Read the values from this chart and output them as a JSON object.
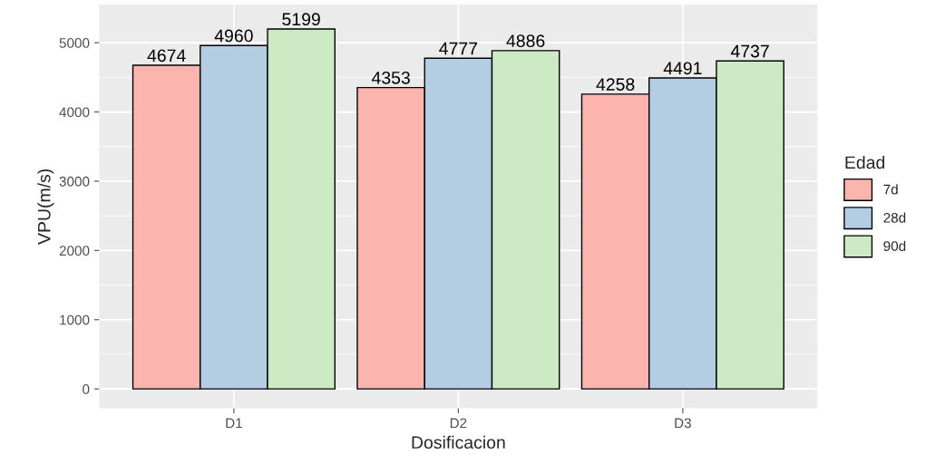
{
  "chart_data": {
    "type": "bar",
    "xlabel": "Dosificacion",
    "ylabel": "VPU(m/s)",
    "legend_title": "Edad",
    "categories": [
      "D1",
      "D2",
      "D3"
    ],
    "series": [
      {
        "name": "7d",
        "color": "#fbb4ae",
        "values": [
          4674,
          4353,
          4258
        ]
      },
      {
        "name": "28d",
        "color": "#b3cde3",
        "values": [
          4960,
          4777,
          4491
        ]
      },
      {
        "name": "90d",
        "color": "#ccebc5",
        "values": [
          5199,
          4886,
          4737
        ]
      }
    ],
    "ylim": [
      -280,
      5550
    ],
    "yticks": [
      0,
      1000,
      2000,
      3000,
      4000,
      5000
    ],
    "grid": true,
    "legend": "right",
    "data_labels": true
  }
}
